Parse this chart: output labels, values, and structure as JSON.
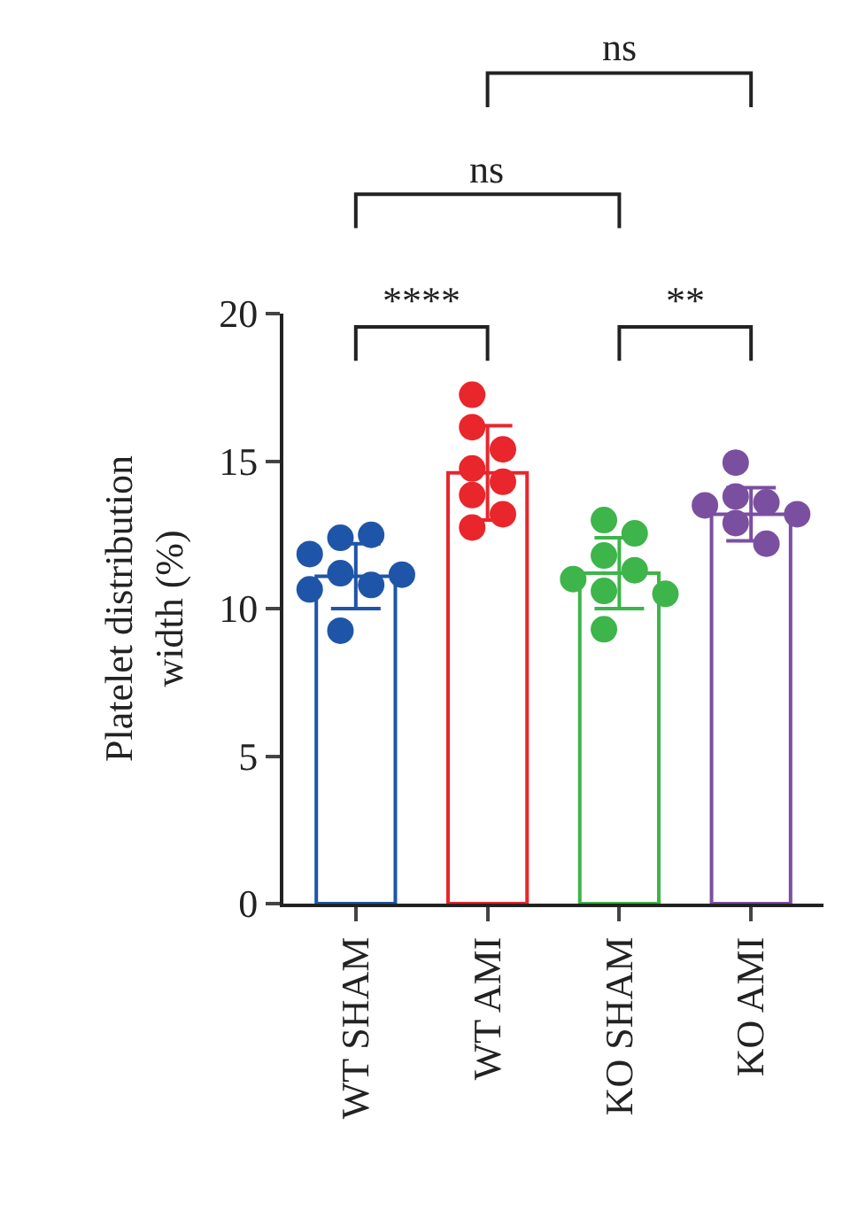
{
  "chart_data": {
    "type": "bar",
    "ylabel": "Platelet distribution width (%)",
    "categories": [
      "WT SHAM",
      "WT AMI",
      "KO SHAM",
      "KO AMI"
    ],
    "values": [
      11.1,
      14.6,
      11.2,
      13.2
    ],
    "errors": [
      1.1,
      1.6,
      1.2,
      0.9
    ],
    "colors": [
      "#1f55a8",
      "#e8262c",
      "#3db54a",
      "#7b4fa0"
    ],
    "series": [
      {
        "type": "scatter",
        "color": "#1f55a8",
        "x": [
          "WT SHAM",
          "WT SHAM",
          "WT SHAM",
          "WT SHAM",
          "WT SHAM",
          "WT SHAM",
          "WT SHAM",
          "WT SHAM"
        ],
        "values": [
          12.4,
          12.5,
          11.85,
          11.2,
          10.8,
          10.65,
          11.15,
          9.25
        ]
      },
      {
        "type": "scatter",
        "color": "#e8262c",
        "x": [
          "WT AMI",
          "WT AMI",
          "WT AMI",
          "WT AMI",
          "WT AMI",
          "WT AMI",
          "WT AMI",
          "WT AMI"
        ],
        "values": [
          17.25,
          16.15,
          15.4,
          14.75,
          14.3,
          13.85,
          13.2,
          12.75
        ]
      },
      {
        "type": "scatter",
        "color": "#3db54a",
        "x": [
          "KO SHAM",
          "KO SHAM",
          "KO SHAM",
          "KO SHAM",
          "KO SHAM",
          "KO SHAM",
          "KO SHAM",
          "KO SHAM"
        ],
        "values": [
          13.0,
          12.55,
          11.8,
          11.3,
          11.0,
          10.6,
          10.5,
          9.3
        ]
      },
      {
        "type": "scatter",
        "color": "#7b4fa0",
        "x": [
          "KO AMI",
          "KO AMI",
          "KO AMI",
          "KO AMI",
          "KO AMI",
          "KO AMI",
          "KO AMI"
        ],
        "values": [
          14.95,
          13.8,
          13.6,
          13.5,
          13.2,
          12.9,
          12.2
        ]
      }
    ],
    "ylim": [
      0,
      20
    ],
    "yticks": [
      0,
      5,
      10,
      15,
      20
    ],
    "grid": false,
    "marker": "circle",
    "annotations": [
      "****",
      "**",
      "ns",
      "ns"
    ]
  }
}
